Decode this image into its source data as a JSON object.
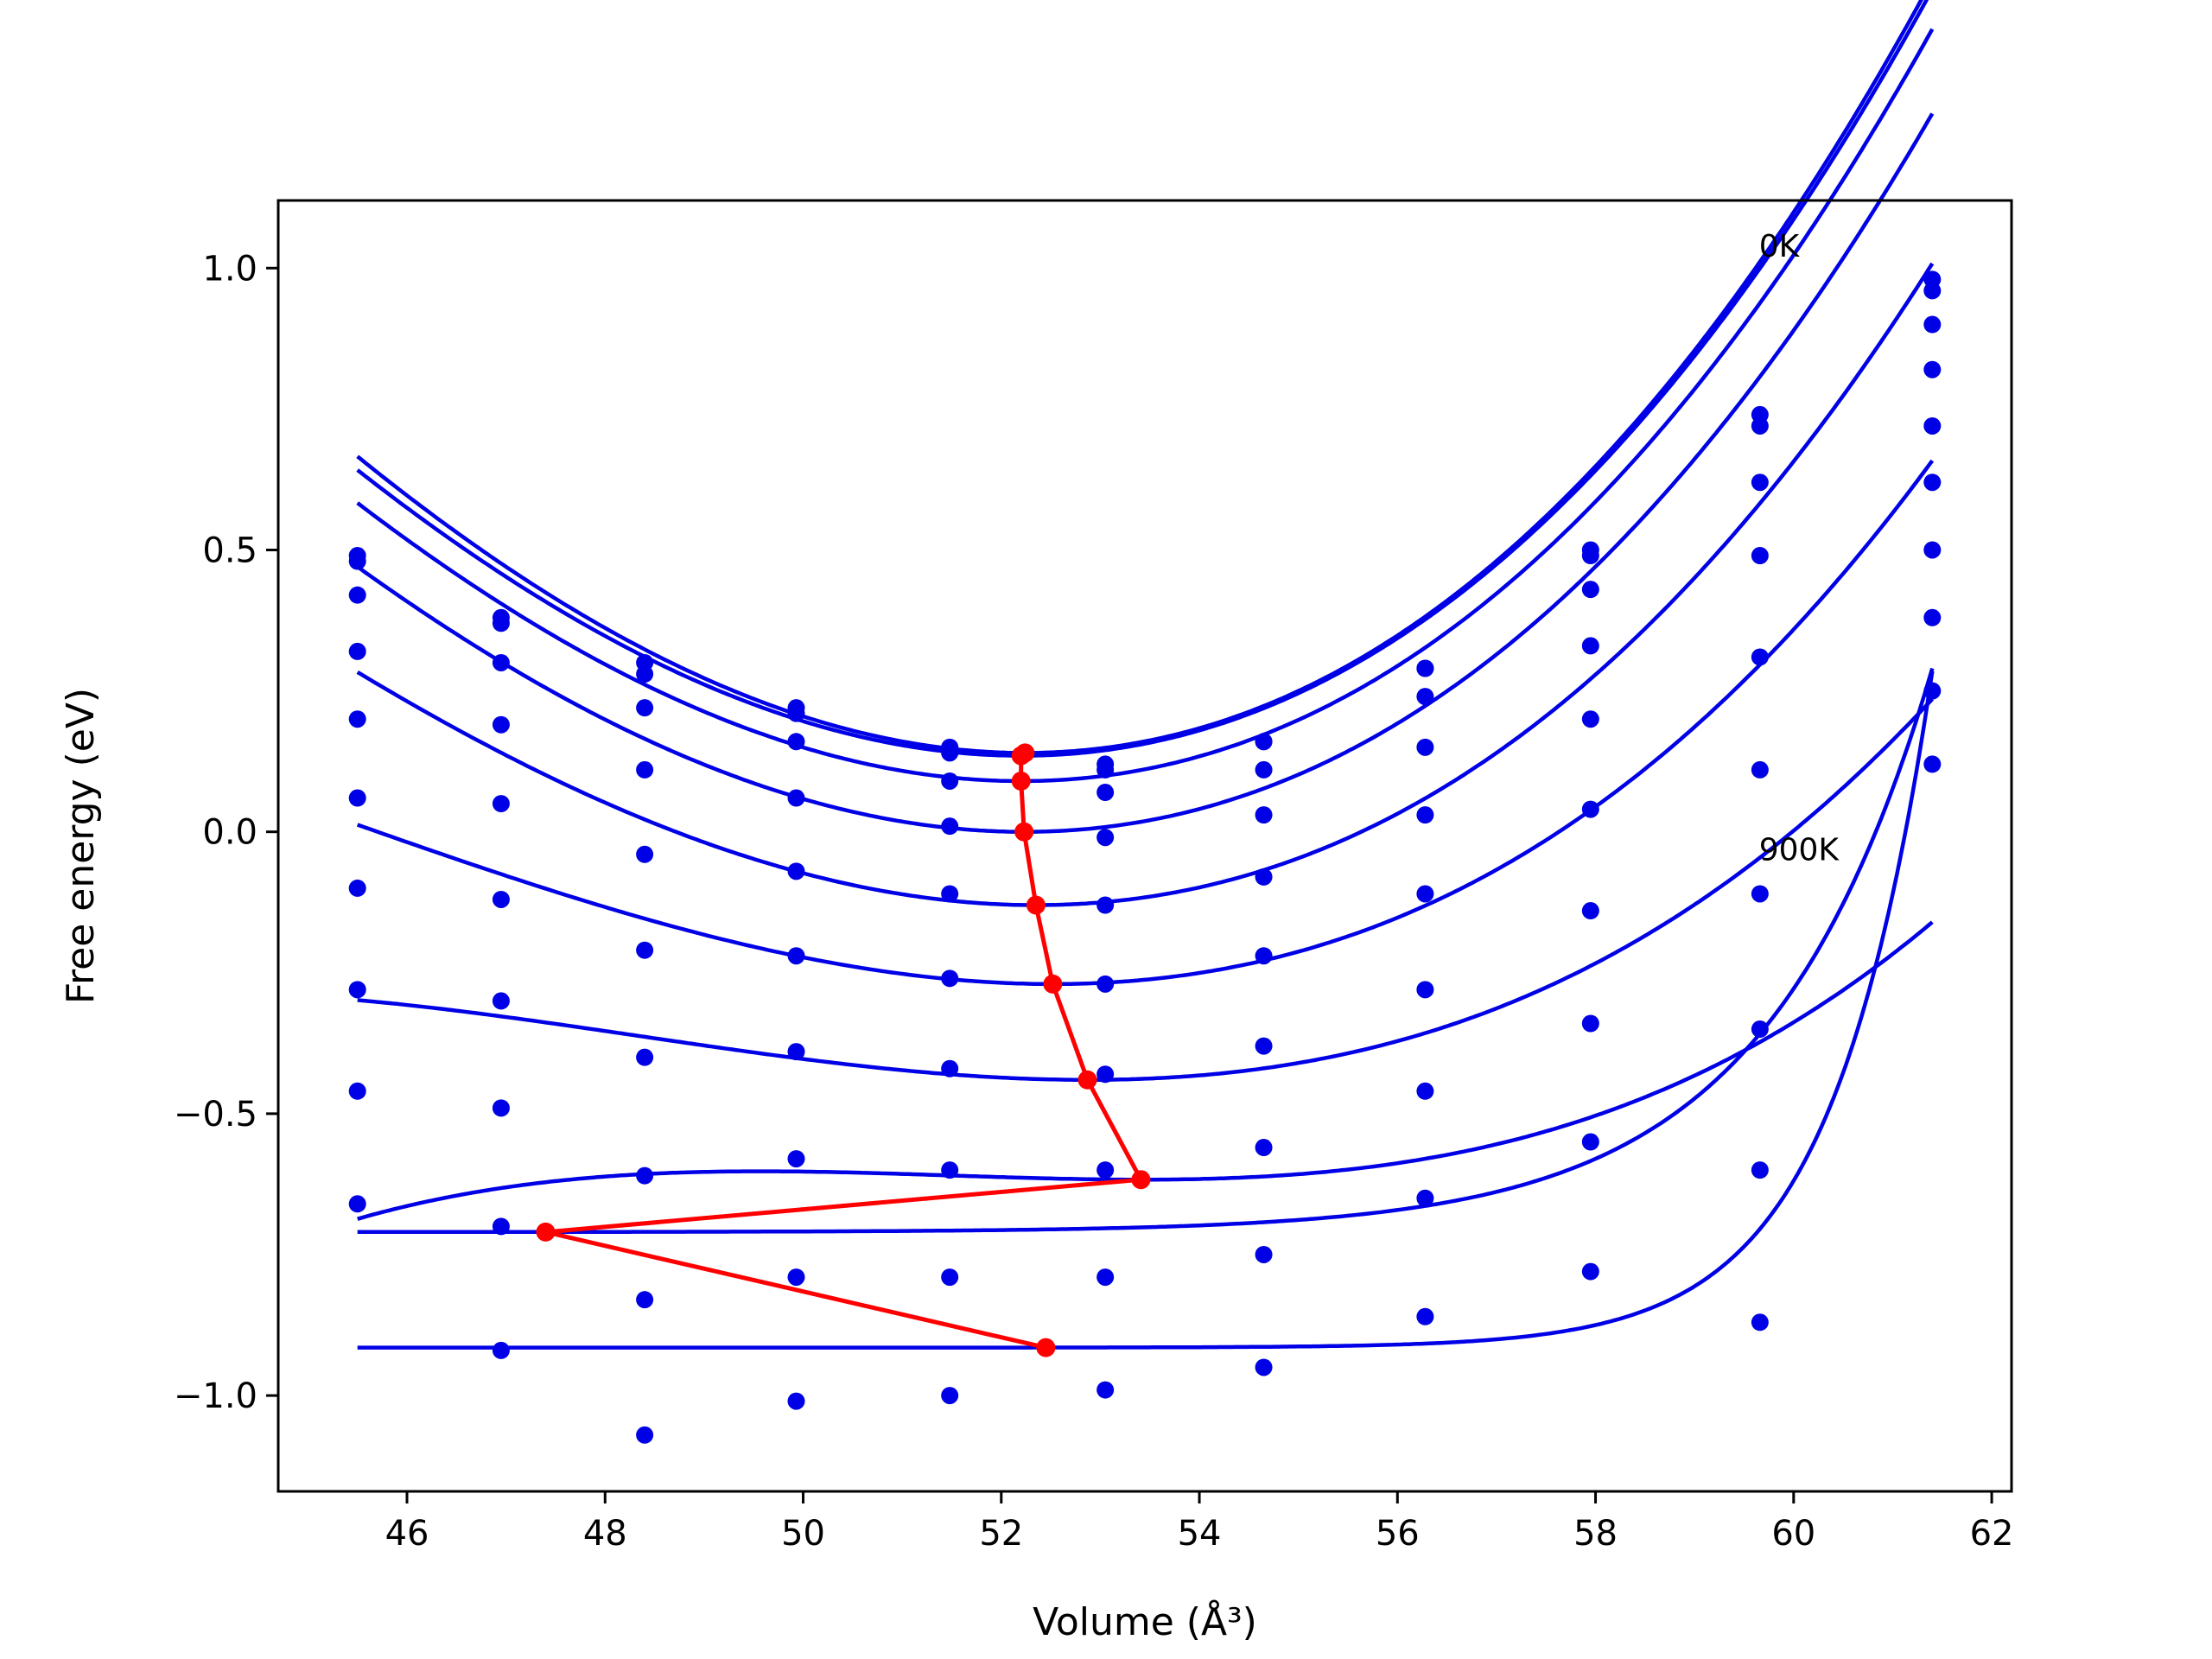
{
  "chart_data": {
    "type": "scatter",
    "xlabel": "Volume (Å³)",
    "ylabel": "Free energy (eV)",
    "xlim": [
      44.7,
      62.2
    ],
    "ylim": [
      -1.17,
      1.12
    ],
    "xticks": [
      "46",
      "48",
      "50",
      "52",
      "54",
      "56",
      "58",
      "60",
      "62"
    ],
    "yticks": [
      "−1.0",
      "−0.5",
      "0.0",
      "0.5",
      "1.0"
    ],
    "grid": false,
    "legend": "none",
    "colors": {
      "points": "#0000e6",
      "curves": "#0000e6",
      "minima": "#ff0000"
    },
    "annotations": [
      {
        "text": "0K",
        "x": 59.65,
        "y": 1.02
      },
      {
        "text": "900K",
        "x": 59.65,
        "y": -0.05
      }
    ],
    "volumes": [
      45.5,
      46.95,
      48.4,
      49.93,
      51.48,
      53.05,
      54.65,
      56.28,
      57.95,
      59.66,
      61.4
    ],
    "series": [
      {
        "values": [
          0.49,
          0.38,
          0.3,
          0.22,
          0.15,
          0.12,
          0.16,
          0.29,
          0.5,
          0.74,
          0.98
        ],
        "fit": {
          "v0": 52.24,
          "e0": 0.14,
          "a": 0.0136,
          "b": 0.0003
        }
      },
      {
        "values": [
          0.48,
          0.37,
          0.28,
          0.21,
          0.14,
          0.11,
          0.16,
          0.29,
          0.49,
          0.72,
          0.96
        ],
        "fit": {
          "v0": 52.2,
          "e0": 0.135,
          "a": 0.0133,
          "b": 0.0003
        }
      },
      {
        "values": [
          0.42,
          0.3,
          0.22,
          0.16,
          0.09,
          0.07,
          0.11,
          0.24,
          0.43,
          0.62,
          0.9
        ],
        "fit": {
          "v0": 52.2,
          "e0": 0.09,
          "a": 0.013,
          "b": 0.0003
        }
      },
      {
        "values": [
          0.32,
          0.19,
          0.11,
          0.06,
          0.01,
          -0.01,
          0.03,
          0.15,
          0.33,
          0.49,
          0.82
        ],
        "fit": {
          "v0": 52.23,
          "e0": 0.0,
          "a": 0.0124,
          "b": 0.0003
        }
      },
      {
        "values": [
          0.2,
          0.05,
          -0.04,
          -0.07,
          -0.11,
          -0.13,
          -0.08,
          0.03,
          0.2,
          0.31,
          0.72
        ],
        "fit": {
          "v0": 52.35,
          "e0": -0.13,
          "a": 0.011,
          "b": 0.00032
        }
      },
      {
        "values": [
          0.06,
          -0.12,
          -0.21,
          -0.22,
          -0.26,
          -0.27,
          -0.22,
          -0.11,
          0.04,
          0.11,
          0.62
        ],
        "fit": {
          "v0": 52.52,
          "e0": -0.27,
          "a": 0.0084,
          "b": 0.00038
        }
      },
      {
        "values": [
          -0.1,
          -0.3,
          -0.4,
          -0.39,
          -0.42,
          -0.43,
          -0.38,
          -0.28,
          -0.14,
          -0.11,
          0.5
        ],
        "fit": {
          "v0": 52.87,
          "e0": -0.44,
          "a": 0.0057,
          "b": 0.00042
        }
      },
      {
        "values": [
          -0.28,
          -0.49,
          -0.61,
          -0.58,
          -0.6,
          -0.6,
          -0.56,
          -0.46,
          -0.34,
          -0.35,
          0.38
        ],
        "fit": {
          "v0": 53.41,
          "e0": -0.617,
          "a": 0.003,
          "b": 0.00052
        }
      },
      {
        "values": [
          -0.46,
          -0.7,
          -0.83,
          -0.79,
          -0.79,
          -0.79,
          -0.75,
          -0.65,
          -0.55,
          -0.6,
          0.25
        ],
        "fit": {
          "e0": -0.71,
          "c": 1.0,
          "k": 0.6
        }
      },
      {
        "values": [
          -0.66,
          -0.92,
          -1.07,
          -1.01,
          -1.0,
          -0.99,
          -0.95,
          -0.86,
          -0.78,
          -0.87,
          0.12
        ],
        "fit": {
          "e0": -0.915,
          "c": 1.2,
          "k": 1.0
        }
      }
    ],
    "minima": {
      "x": [
        52.24,
        52.2,
        52.2,
        52.23,
        52.35,
        52.52,
        52.87,
        53.41,
        47.4,
        52.45
      ],
      "y": [
        0.14,
        0.135,
        0.09,
        0.0,
        -0.13,
        -0.27,
        -0.44,
        -0.617,
        -0.71,
        -0.915
      ]
    }
  }
}
